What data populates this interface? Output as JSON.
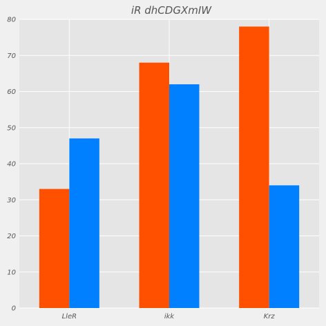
{
  "chart_data": {
    "type": "bar",
    "title": "iR dhCDGXmIW",
    "xlabel": "",
    "ylabel": "",
    "categories": [
      "LleR",
      "ikk",
      "Krz"
    ],
    "series": [
      {
        "values": [
          33,
          68,
          78
        ],
        "color": "#ff5000"
      },
      {
        "values": [
          47,
          62,
          34
        ],
        "color": "#0080ff"
      }
    ],
    "ylim": [
      0,
      80
    ],
    "yticks": [
      0,
      10,
      20,
      30,
      40,
      50,
      60,
      70,
      80
    ],
    "grid": true,
    "legend": "none",
    "colors": {
      "background": "#f0f0f0",
      "plot_area": "#e5e5e5",
      "grid": "#ffffff",
      "text": "#555555"
    }
  }
}
